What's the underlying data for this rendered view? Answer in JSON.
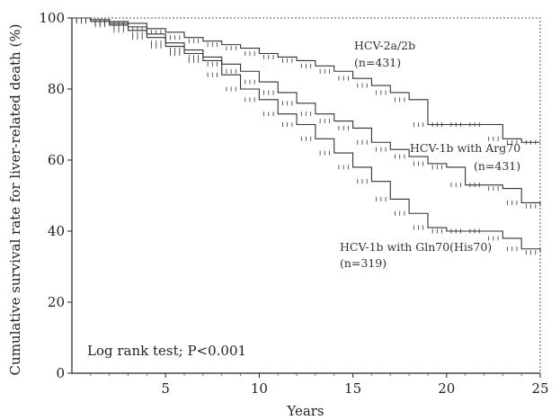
{
  "chart_data": {
    "type": "line",
    "xlabel": "Years",
    "ylabel": "Cumulative survival rate for liver-related death (%)",
    "xlim": [
      0,
      25
    ],
    "ylim": [
      0,
      100
    ],
    "x_ticks": [
      5,
      10,
      15,
      20,
      25
    ],
    "y_ticks": [
      0,
      20,
      40,
      60,
      80,
      100
    ],
    "annotation": "Log rank test; P<0.001",
    "series": [
      {
        "name": "HCV-2a/2b",
        "n_label": "(n=431)",
        "color": "#333333",
        "x": [
          0,
          1,
          2,
          3,
          4,
          5,
          6,
          7,
          8,
          9,
          10,
          11,
          12,
          13,
          14,
          15,
          16,
          17,
          18,
          19,
          20,
          21,
          22,
          23,
          24,
          25
        ],
        "y": [
          100,
          99.5,
          99,
          98.5,
          97,
          96,
          94.5,
          93.5,
          92.5,
          91.5,
          90,
          89,
          88,
          86.5,
          85,
          83,
          81,
          79,
          77,
          70,
          70,
          70,
          70,
          66,
          65,
          65
        ]
      },
      {
        "name": "HCV-1b with Arg70",
        "n_label": "(n=431)",
        "color": "#333333",
        "x": [
          0,
          1,
          2,
          3,
          4,
          5,
          6,
          7,
          8,
          9,
          10,
          11,
          12,
          13,
          14,
          15,
          16,
          17,
          18,
          19,
          20,
          21,
          22,
          23,
          24,
          25
        ],
        "y": [
          100,
          99.5,
          98.5,
          97.5,
          95.5,
          93,
          91,
          89,
          87,
          85,
          82,
          79,
          76,
          73,
          71,
          69,
          65,
          63,
          61,
          59,
          58,
          53,
          53,
          52,
          48,
          47
        ]
      },
      {
        "name": "HCV-1b with Gln70(His70)",
        "n_label": "(n=319)",
        "color": "#333333",
        "x": [
          0,
          1,
          2,
          3,
          4,
          5,
          6,
          7,
          8,
          9,
          10,
          11,
          12,
          13,
          14,
          15,
          16,
          17,
          18,
          19,
          20,
          21,
          22,
          23,
          24,
          25
        ],
        "y": [
          100,
          99,
          98,
          96.5,
          94.5,
          92,
          90,
          88,
          84,
          80,
          77,
          73,
          70,
          66,
          62,
          58,
          54,
          49,
          45,
          41,
          40,
          40,
          40,
          38,
          35,
          34
        ]
      }
    ]
  }
}
